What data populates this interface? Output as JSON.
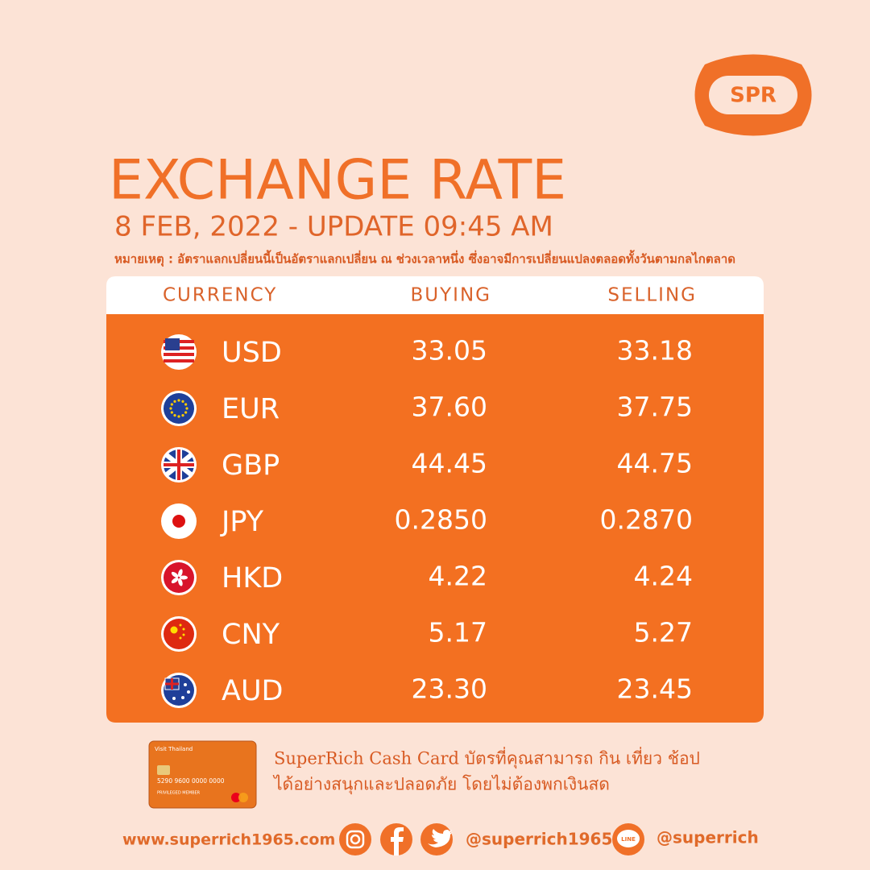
{
  "logo": {
    "text": "SPR"
  },
  "header": {
    "title": "EXCHANGE RATE",
    "subtitle": "8 FEB, 2022 - UPDATE 09:45 AM",
    "note": "หมายเหตุ : อัตราแลกเปลี่ยนนี้เป็นอัตราแลกเปลี่ยน ณ ช่วงเวลาหนึ่ง ซึ่งอาจมีการเปลี่ยนแปลงตลอดทั้งวันตามกลไกตลาด"
  },
  "table": {
    "columns": [
      "CURRENCY",
      "BUYING",
      "SELLING"
    ],
    "rows": [
      [
        "USD",
        "33.05",
        "33.18"
      ],
      [
        "EUR",
        "37.60",
        "37.75"
      ],
      [
        "GBP",
        "44.45",
        "44.75"
      ],
      [
        "JPY",
        "0.2850",
        "0.2870"
      ],
      [
        "HKD",
        "4.22",
        "4.24"
      ],
      [
        "CNY",
        "5.17",
        "5.27"
      ],
      [
        "AUD",
        "23.30",
        "23.45"
      ]
    ]
  },
  "promo": {
    "card": {
      "brand": "Visit Thailand",
      "number": "5290 9600 0000 0000",
      "tier": "PRIVILEGED MEMBER"
    },
    "lines": [
      "SuperRich Cash Card บัตรที่คุณสามารถ กิน เที่ยว ช้อป",
      "ได้อย่างสนุกและปลอดภัย โดยไม่ต้องพกเงินสด"
    ]
  },
  "footer": {
    "website": "www.superrich1965.com",
    "social": "@superrich1965",
    "line_icon": "LINE",
    "line": "@superrich"
  }
}
